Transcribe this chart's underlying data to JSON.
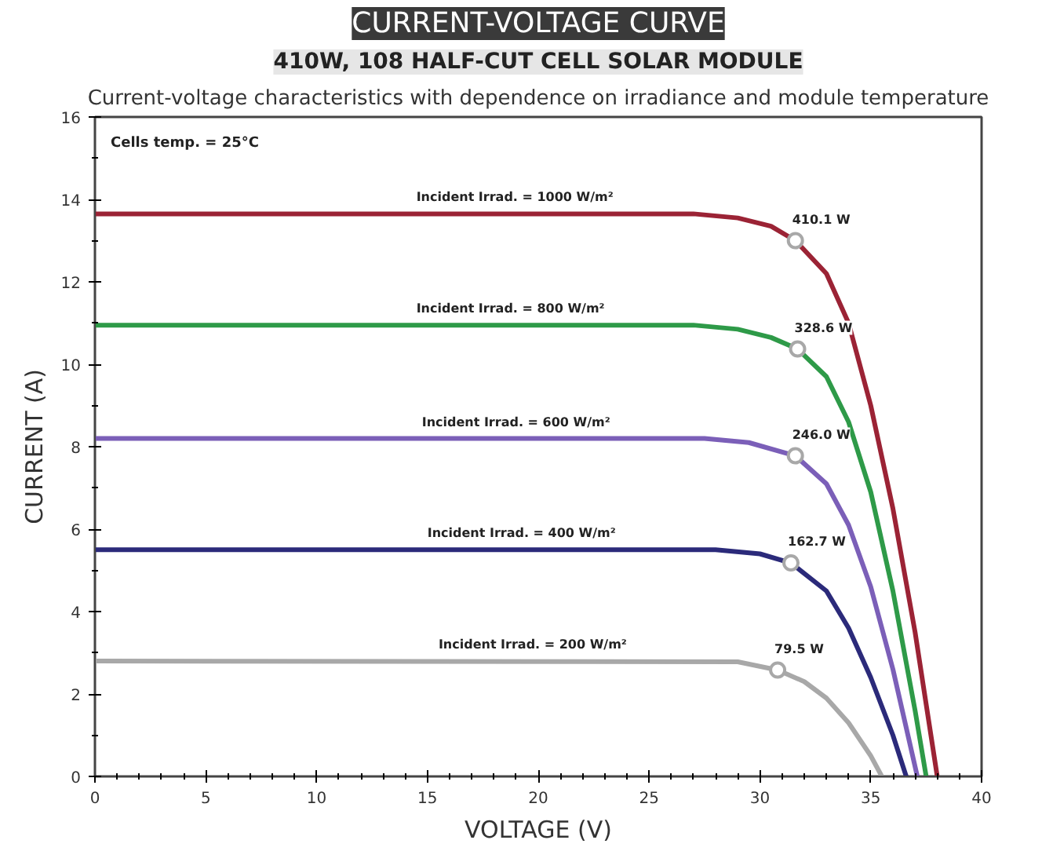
{
  "chart_data": {
    "type": "line",
    "title": "CURRENT-VOLTAGE CURVE",
    "subtitle": "410W, 108 HALF-CUT CELL SOLAR MODULE",
    "xlabel": "VOLTAGE (V)",
    "ylabel": "CURRENT (A)",
    "xlim": [
      0,
      40
    ],
    "xticks": [
      0,
      5,
      10,
      15,
      20,
      25,
      30,
      35,
      40
    ],
    "ylim": [
      0,
      16
    ],
    "yticks": [
      0,
      2,
      4,
      6,
      8,
      10,
      12,
      14,
      16
    ],
    "grid": false,
    "series": [
      {
        "name": "Incident Irrad. = 1000 W/m²",
        "color": "#9b2335",
        "x": [
          0,
          27,
          29,
          30.5,
          31.6,
          33,
          34,
          35,
          36,
          37,
          38
        ],
        "values": [
          13.65,
          13.65,
          13.55,
          13.35,
          13.0,
          12.2,
          11.0,
          9.0,
          6.5,
          3.5,
          0
        ]
      },
      {
        "name": "Incident Irrad. = 800 W/m²",
        "color": "#2e9a48",
        "x": [
          0,
          27,
          29,
          30.5,
          31.7,
          33,
          34,
          35,
          36,
          37,
          37.5
        ],
        "values": [
          10.95,
          10.95,
          10.85,
          10.65,
          10.37,
          9.7,
          8.6,
          6.9,
          4.5,
          1.6,
          0
        ]
      },
      {
        "name": "Incident Irrad. = 600 W/m²",
        "color": "#7b5fb8",
        "x": [
          0,
          27.5,
          29.5,
          31.6,
          33,
          34,
          35,
          36,
          37.1
        ],
        "values": [
          8.2,
          8.2,
          8.1,
          7.78,
          7.1,
          6.1,
          4.6,
          2.6,
          0
        ]
      },
      {
        "name": "Incident Irrad. = 400 W/m²",
        "color": "#2b2a7a",
        "x": [
          0,
          28,
          30,
          31.4,
          33,
          34,
          35,
          36,
          36.6
        ],
        "values": [
          5.5,
          5.5,
          5.4,
          5.18,
          4.5,
          3.6,
          2.4,
          1.0,
          0
        ]
      },
      {
        "name": "Incident Irrad. = 200 W/m²",
        "color": "#a8a8a8",
        "x": [
          0,
          29,
          30.8,
          32,
          33,
          34,
          35,
          35.5
        ],
        "values": [
          2.8,
          2.78,
          2.58,
          2.3,
          1.9,
          1.3,
          0.5,
          0
        ]
      },
      {
        "type": "scatter",
        "marker": "circle",
        "color": "#a8a8a8",
        "x": [
          31.6,
          31.7,
          31.6,
          31.4,
          30.8
        ],
        "values": [
          13.0,
          10.37,
          7.78,
          5.18,
          2.58
        ]
      }
    ],
    "annotations": [
      "Current-voltage characteristics with dependence on irradiance and module temperature",
      "Cells temp. = 25°C",
      {
        "text": "410.1 W",
        "x": 31.6,
        "y": 13.0
      },
      {
        "text": "328.6 W",
        "x": 31.7,
        "y": 10.37
      },
      {
        "text": "246.0 W",
        "x": 31.6,
        "y": 7.78
      },
      {
        "text": "162.7 W",
        "x": 31.4,
        "y": 5.18
      },
      {
        "text": "79.5 W",
        "x": 30.8,
        "y": 2.58
      }
    ]
  }
}
